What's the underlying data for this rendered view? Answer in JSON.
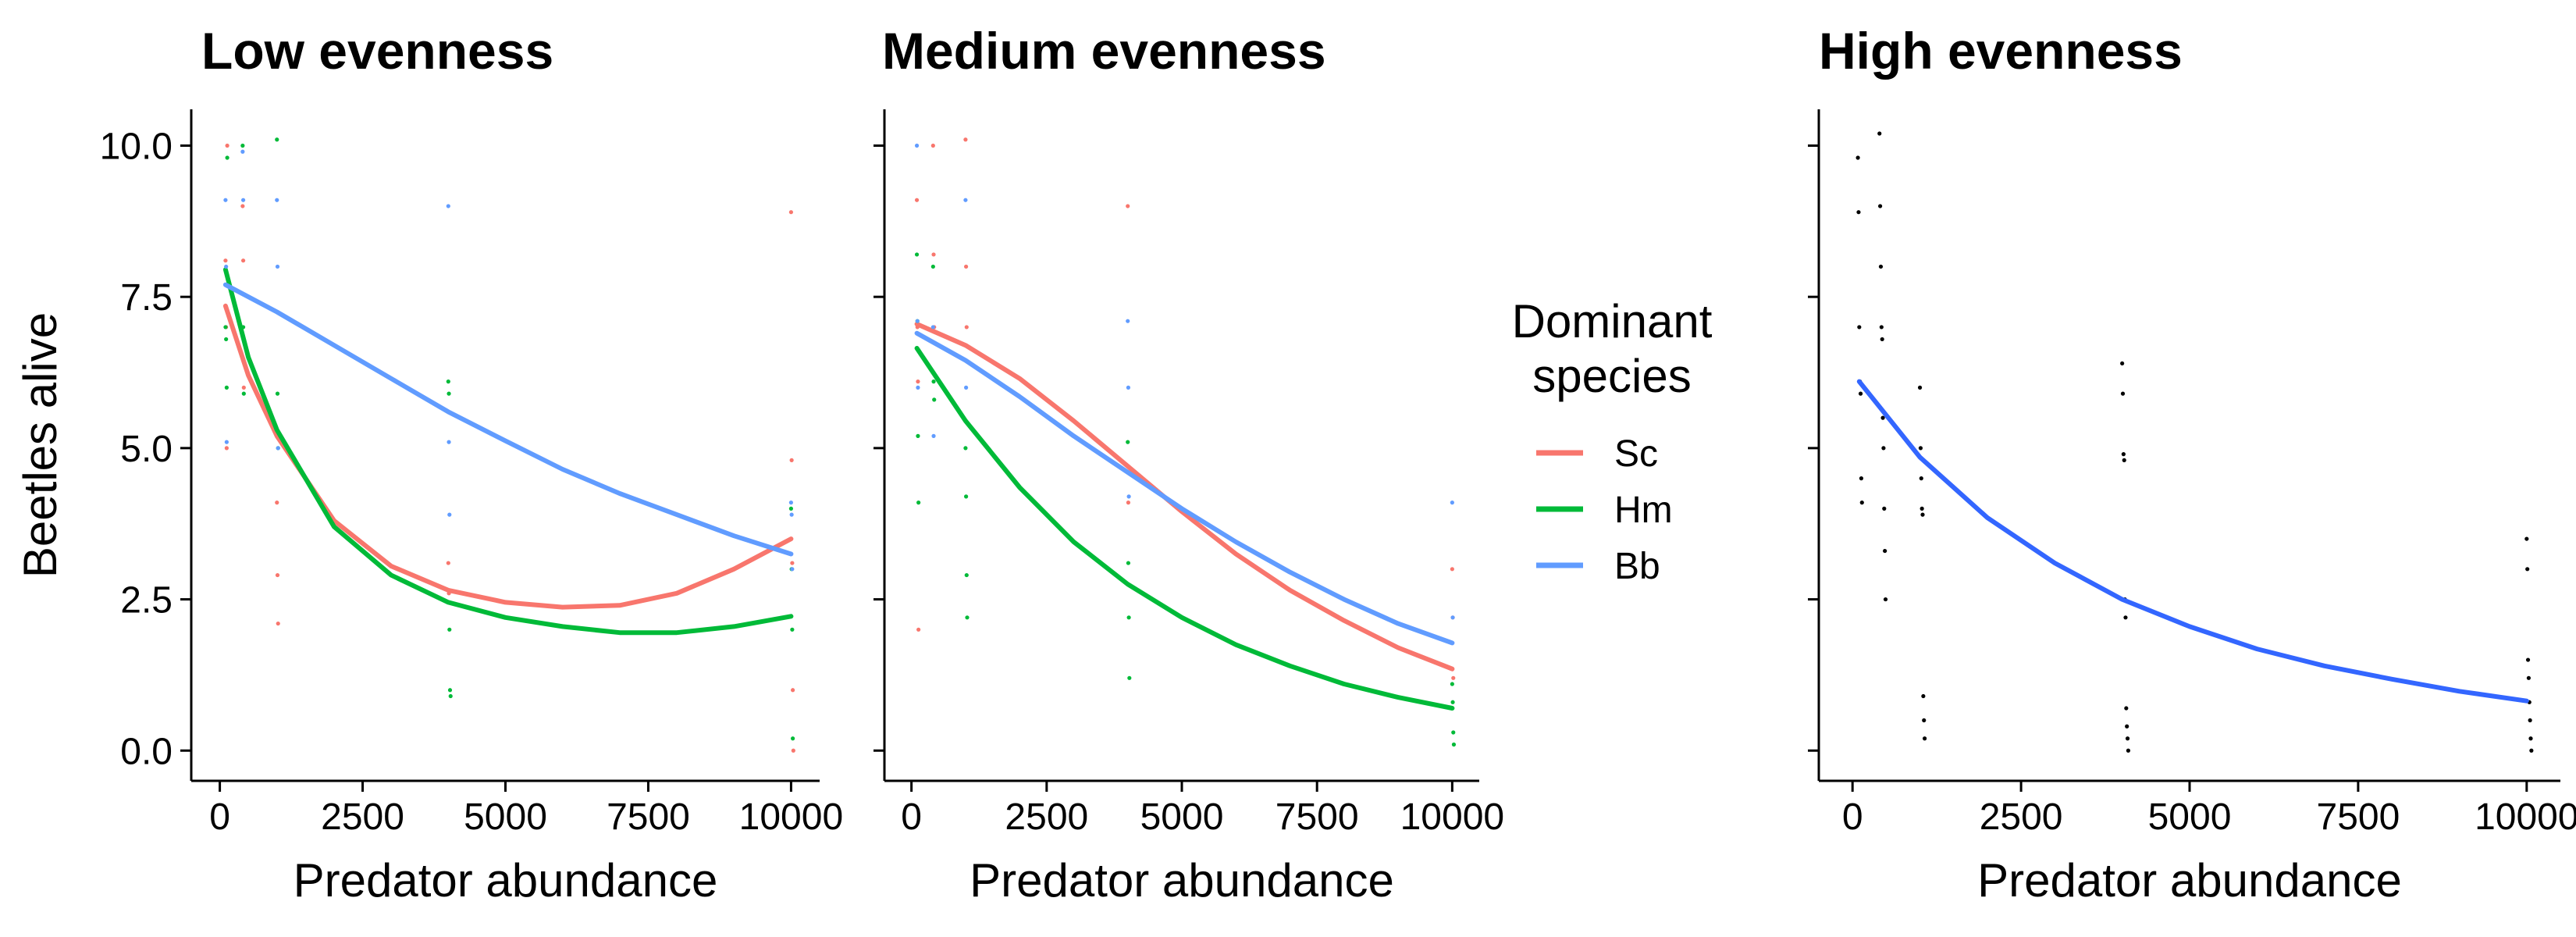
{
  "chart_data": [
    {
      "type": "scatter",
      "title": "Low evenness",
      "xlabel": "Predator abundance",
      "ylabel": "Beetles alive",
      "xlim": [
        -500,
        10500
      ],
      "ylim": [
        -0.5,
        10.6
      ],
      "xticks": [
        0,
        2500,
        5000,
        7500,
        10000
      ],
      "yticks": [
        0,
        2.5,
        5,
        7.5,
        10
      ],
      "xtick_labels": [
        "0",
        "2500",
        "5000",
        "7500",
        "10000"
      ],
      "ytick_labels": [
        "0.0",
        "2.5",
        "5.0",
        "7.5",
        "10.0"
      ],
      "show_y_tick_labels": true,
      "grid": false,
      "series": [
        {
          "name": "Sc",
          "color": "#F8766D",
          "points": [
            [
              100,
              8.1
            ],
            [
              110,
              7.0
            ],
            [
              120,
              5.0
            ],
            [
              130,
              10.0
            ],
            [
              400,
              9.0
            ],
            [
              410,
              8.1
            ],
            [
              420,
              6.0
            ],
            [
              1000,
              4.1
            ],
            [
              1010,
              2.9
            ],
            [
              1020,
              2.1
            ],
            [
              4000,
              3.1
            ],
            [
              4010,
              2.6
            ],
            [
              10000,
              8.9
            ],
            [
              10010,
              4.8
            ],
            [
              10020,
              3.1
            ],
            [
              10030,
              1.0
            ],
            [
              10040,
              0.0
            ]
          ],
          "curve": [
            [
              100,
              7.35
            ],
            [
              500,
              6.2
            ],
            [
              1000,
              5.2
            ],
            [
              2000,
              3.8
            ],
            [
              3000,
              3.05
            ],
            [
              4000,
              2.65
            ],
            [
              5000,
              2.45
            ],
            [
              6000,
              2.37
            ],
            [
              7000,
              2.4
            ],
            [
              8000,
              2.6
            ],
            [
              9000,
              3.0
            ],
            [
              10000,
              3.5
            ]
          ]
        },
        {
          "name": "Hm",
          "color": "#00BA38",
          "points": [
            [
              100,
              7.0
            ],
            [
              110,
              6.8
            ],
            [
              120,
              6.0
            ],
            [
              130,
              9.8
            ],
            [
              400,
              10.0
            ],
            [
              410,
              7.0
            ],
            [
              420,
              5.9
            ],
            [
              1000,
              10.1
            ],
            [
              1010,
              5.9
            ],
            [
              1020,
              5.0
            ],
            [
              4000,
              6.1
            ],
            [
              4010,
              5.9
            ],
            [
              4020,
              2.0
            ],
            [
              4030,
              1.0
            ],
            [
              4040,
              0.9
            ],
            [
              10000,
              4.0
            ],
            [
              10010,
              3.0
            ],
            [
              10020,
              2.0
            ],
            [
              10030,
              0.2
            ]
          ],
          "curve": [
            [
              100,
              7.95
            ],
            [
              500,
              6.5
            ],
            [
              1000,
              5.3
            ],
            [
              2000,
              3.7
            ],
            [
              3000,
              2.9
            ],
            [
              4000,
              2.45
            ],
            [
              5000,
              2.2
            ],
            [
              6000,
              2.05
            ],
            [
              7000,
              1.95
            ],
            [
              8000,
              1.95
            ],
            [
              9000,
              2.05
            ],
            [
              10000,
              2.22
            ]
          ]
        },
        {
          "name": "Bb",
          "color": "#619CFF",
          "points": [
            [
              100,
              9.1
            ],
            [
              110,
              8.0
            ],
            [
              120,
              5.1
            ],
            [
              400,
              9.9
            ],
            [
              410,
              9.1
            ],
            [
              1000,
              9.1
            ],
            [
              1010,
              8.0
            ],
            [
              1020,
              5.0
            ],
            [
              4000,
              9.0
            ],
            [
              4010,
              5.1
            ],
            [
              4020,
              3.9
            ],
            [
              10000,
              4.1
            ],
            [
              10010,
              3.9
            ],
            [
              10020,
              3.0
            ]
          ],
          "curve": [
            [
              100,
              7.7
            ],
            [
              1000,
              7.25
            ],
            [
              2000,
              6.7
            ],
            [
              3000,
              6.15
            ],
            [
              4000,
              5.6
            ],
            [
              5000,
              5.12
            ],
            [
              6000,
              4.65
            ],
            [
              7000,
              4.25
            ],
            [
              8000,
              3.9
            ],
            [
              9000,
              3.55
            ],
            [
              10000,
              3.25
            ]
          ]
        }
      ]
    },
    {
      "type": "scatter",
      "title": "Medium evenness",
      "xlabel": "Predator abundance",
      "ylabel": "",
      "xlim": [
        -500,
        10500
      ],
      "ylim": [
        -0.5,
        10.6
      ],
      "xticks": [
        0,
        2500,
        5000,
        7500,
        10000
      ],
      "yticks": [
        0,
        2.5,
        5,
        7.5,
        10
      ],
      "xtick_labels": [
        "0",
        "2500",
        "5000",
        "7500",
        "10000"
      ],
      "ytick_labels": [],
      "show_y_tick_labels": false,
      "grid": false,
      "series": [
        {
          "name": "Sc",
          "color": "#F8766D",
          "points": [
            [
              100,
              9.1
            ],
            [
              110,
              7.0
            ],
            [
              120,
              6.1
            ],
            [
              130,
              2.0
            ],
            [
              400,
              10.0
            ],
            [
              410,
              8.2
            ],
            [
              420,
              7.0
            ],
            [
              1000,
              10.1
            ],
            [
              1010,
              8.0
            ],
            [
              1020,
              7.0
            ],
            [
              4000,
              9.0
            ],
            [
              4010,
              4.1
            ],
            [
              10000,
              3.0
            ],
            [
              10010,
              2.2
            ],
            [
              10020,
              1.2
            ]
          ],
          "curve": [
            [
              100,
              7.05
            ],
            [
              1000,
              6.7
            ],
            [
              2000,
              6.15
            ],
            [
              3000,
              5.45
            ],
            [
              4000,
              4.7
            ],
            [
              5000,
              3.95
            ],
            [
              6000,
              3.25
            ],
            [
              7000,
              2.65
            ],
            [
              8000,
              2.15
            ],
            [
              9000,
              1.7
            ],
            [
              10000,
              1.35
            ]
          ]
        },
        {
          "name": "Hm",
          "color": "#00BA38",
          "points": [
            [
              100,
              8.2
            ],
            [
              110,
              7.1
            ],
            [
              120,
              5.2
            ],
            [
              130,
              4.1
            ],
            [
              400,
              8.0
            ],
            [
              410,
              6.1
            ],
            [
              420,
              5.8
            ],
            [
              1000,
              5.0
            ],
            [
              1010,
              4.2
            ],
            [
              1020,
              2.9
            ],
            [
              1030,
              2.2
            ],
            [
              4000,
              5.1
            ],
            [
              4010,
              3.1
            ],
            [
              4020,
              2.2
            ],
            [
              4030,
              1.2
            ],
            [
              10000,
              1.1
            ],
            [
              10010,
              0.8
            ],
            [
              10020,
              0.3
            ],
            [
              10030,
              0.1
            ]
          ],
          "curve": [
            [
              100,
              6.65
            ],
            [
              1000,
              5.45
            ],
            [
              2000,
              4.35
            ],
            [
              3000,
              3.45
            ],
            [
              4000,
              2.75
            ],
            [
              5000,
              2.2
            ],
            [
              6000,
              1.75
            ],
            [
              7000,
              1.4
            ],
            [
              8000,
              1.1
            ],
            [
              9000,
              0.88
            ],
            [
              10000,
              0.7
            ]
          ]
        },
        {
          "name": "Bb",
          "color": "#619CFF",
          "points": [
            [
              100,
              10.0
            ],
            [
              110,
              7.1
            ],
            [
              120,
              6.0
            ],
            [
              400,
              7.0
            ],
            [
              410,
              5.2
            ],
            [
              1000,
              9.1
            ],
            [
              1010,
              6.0
            ],
            [
              4000,
              7.1
            ],
            [
              4010,
              6.0
            ],
            [
              4020,
              4.2
            ],
            [
              10000,
              4.1
            ],
            [
              10010,
              2.2
            ]
          ],
          "curve": [
            [
              100,
              6.9
            ],
            [
              1000,
              6.45
            ],
            [
              2000,
              5.85
            ],
            [
              3000,
              5.2
            ],
            [
              4000,
              4.6
            ],
            [
              5000,
              4.0
            ],
            [
              6000,
              3.45
            ],
            [
              7000,
              2.95
            ],
            [
              8000,
              2.5
            ],
            [
              9000,
              2.1
            ],
            [
              10000,
              1.78
            ]
          ]
        }
      ]
    },
    {
      "type": "scatter",
      "title": "High evenness",
      "xlabel": "Predator abundance",
      "ylabel": "",
      "xlim": [
        -500,
        10500
      ],
      "ylim": [
        -0.5,
        10.6
      ],
      "xticks": [
        0,
        2500,
        5000,
        7500,
        10000
      ],
      "yticks": [
        0,
        2.5,
        5,
        7.5,
        10
      ],
      "xtick_labels": [
        "0",
        "2500",
        "5000",
        "7500",
        "10000"
      ],
      "ytick_labels": [],
      "show_y_tick_labels": false,
      "grid": false,
      "series": [
        {
          "name": "",
          "color": "#000000",
          "points": [
            [
              80,
              9.8
            ],
            [
              90,
              8.9
            ],
            [
              100,
              7.0
            ],
            [
              110,
              6.1
            ],
            [
              120,
              5.9
            ],
            [
              130,
              4.5
            ],
            [
              140,
              4.1
            ],
            [
              400,
              10.2
            ],
            [
              410,
              9.0
            ],
            [
              420,
              8.0
            ],
            [
              430,
              7.0
            ],
            [
              440,
              6.8
            ],
            [
              450,
              5.5
            ],
            [
              460,
              5.0
            ],
            [
              470,
              4.0
            ],
            [
              480,
              3.3
            ],
            [
              490,
              2.5
            ],
            [
              1000,
              6.0
            ],
            [
              1010,
              5.0
            ],
            [
              1020,
              4.5
            ],
            [
              1030,
              4.0
            ],
            [
              1040,
              3.9
            ],
            [
              1050,
              0.9
            ],
            [
              1060,
              0.5
            ],
            [
              1070,
              0.2
            ],
            [
              4000,
              6.4
            ],
            [
              4010,
              5.9
            ],
            [
              4020,
              4.9
            ],
            [
              4030,
              4.8
            ],
            [
              4040,
              2.5
            ],
            [
              4050,
              2.2
            ],
            [
              4060,
              0.7
            ],
            [
              4070,
              0.4
            ],
            [
              4080,
              0.2
            ],
            [
              4090,
              0.0
            ],
            [
              10000,
              3.5
            ],
            [
              10010,
              3.0
            ],
            [
              10020,
              1.5
            ],
            [
              10030,
              1.2
            ],
            [
              10040,
              0.8
            ],
            [
              10050,
              0.5
            ],
            [
              10060,
              0.2
            ],
            [
              10070,
              0.0
            ]
          ],
          "curve": [
            [
              100,
              6.1
            ],
            [
              1000,
              4.85
            ],
            [
              2000,
              3.85
            ],
            [
              3000,
              3.1
            ],
            [
              4000,
              2.5
            ],
            [
              5000,
              2.05
            ],
            [
              6000,
              1.68
            ],
            [
              7000,
              1.4
            ],
            [
              8000,
              1.18
            ],
            [
              9000,
              0.98
            ],
            [
              10000,
              0.82
            ]
          ],
          "curve_color": "#3366FF"
        }
      ]
    }
  ],
  "legend": {
    "title_line1": "Dominant",
    "title_line2": "species",
    "placement": "right-of-panel-2",
    "items": [
      {
        "label": "Sc",
        "color": "#F8766D"
      },
      {
        "label": "Hm",
        "color": "#00BA38"
      },
      {
        "label": "Bb",
        "color": "#619CFF"
      }
    ]
  }
}
